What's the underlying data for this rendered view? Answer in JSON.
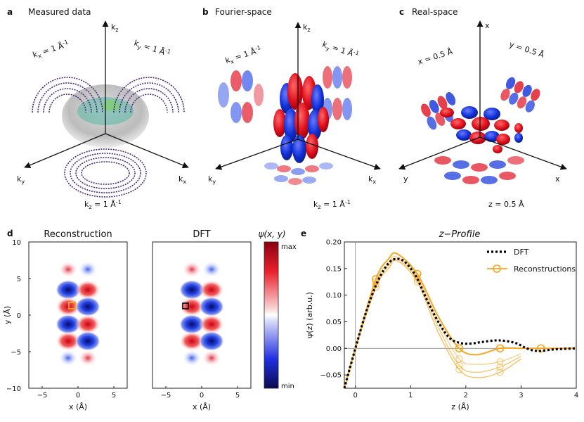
{
  "panels": {
    "a": {
      "letter": "a",
      "title": "Measured data",
      "kz": "k",
      "kz_sub": "z",
      "kx": "k",
      "kx_sub": "x",
      "ky": "k",
      "ky_sub": "y",
      "slice_x": "k",
      "slice_x_sub": "x",
      "slice_x_val": " = 1 Å",
      "slice_x_exp": "-1",
      "slice_y": "k",
      "slice_y_sub": "y",
      "slice_y_val": " = 1 Å",
      "slice_y_exp": "-1",
      "slice_z": "k",
      "slice_z_sub": "z",
      "slice_z_val": " = 1 Å",
      "slice_z_exp": "-1"
    },
    "b": {
      "letter": "b",
      "title": "Fourier-space",
      "kz": "k",
      "kz_sub": "z",
      "kx": "k",
      "kx_sub": "x",
      "ky": "k",
      "ky_sub": "y",
      "slice_x": "k",
      "slice_x_sub": "x",
      "slice_x_val": " = 1 Å",
      "slice_x_exp": "-1",
      "slice_y": "k",
      "slice_y_sub": "y",
      "slice_y_val": " = 1 Å",
      "slice_y_exp": "-1",
      "slice_z": "k",
      "slice_z_sub": "z",
      "slice_z_val": " = 1 Å",
      "slice_z_exp": "-1"
    },
    "c": {
      "letter": "c",
      "title": "Real-space",
      "ax_top": "x",
      "ax_left": "y",
      "ax_right": "x",
      "slice_x": "x = 0.5 Å",
      "slice_y": "y = 0.5 Å",
      "slice_z": "z = 0.5 Å"
    },
    "d": {
      "letter": "d",
      "title_recon": "Reconstruction",
      "title_dft": "DFT",
      "xlabel": "x (Å)",
      "ylabel": "y (Å)",
      "xticks": [
        "−5",
        "0",
        "5"
      ],
      "yticks": [
        "10",
        "5",
        "0",
        "−5",
        "−10"
      ],
      "colorbar_label": "ψ(x, y)",
      "colorbar_max": "max",
      "colorbar_min": "min"
    },
    "e": {
      "letter": "e",
      "title": "z−Profile",
      "xlabel": "z (Å)",
      "ylabel": "ψ(z) (arb.u.)",
      "legend": [
        "DFT",
        "Reconstructions"
      ]
    }
  },
  "colors": {
    "red": "#e0101c",
    "blue": "#1030d8",
    "orange": "#f5a623",
    "dft": "#000000"
  },
  "chart_data": {
    "type": "line",
    "title": "z−Profile",
    "xlabel": "z (Å)",
    "ylabel": "ψ(z) (arb.u.)",
    "xlim": [
      -0.2,
      4.0
    ],
    "ylim": [
      -0.075,
      0.2
    ],
    "xticks": [
      "0",
      "1",
      "2",
      "3",
      "4"
    ],
    "yticks": [
      "−0.05",
      "0.00",
      "0.05",
      "0.10",
      "0.15",
      "0.20"
    ],
    "legend_position": "top-right",
    "series": [
      {
        "name": "DFT",
        "style": "dotted",
        "x": [
          -0.2,
          0.0,
          0.2,
          0.4,
          0.6,
          0.75,
          0.9,
          1.1,
          1.3,
          1.5,
          1.7,
          1.9,
          2.1,
          2.3,
          2.6,
          2.9,
          3.1,
          3.3,
          3.6,
          4.0
        ],
        "y": [
          -0.075,
          0.0,
          0.07,
          0.125,
          0.16,
          0.168,
          0.162,
          0.135,
          0.09,
          0.05,
          0.02,
          0.01,
          0.009,
          0.012,
          0.015,
          0.01,
          0.0,
          -0.005,
          -0.002,
          0.0
        ]
      },
      {
        "name": "Reconstructions",
        "style": "solid-markers",
        "x": [
          -0.2,
          0.0,
          0.37,
          0.6,
          0.75,
          1.12,
          1.5,
          1.88,
          2.2,
          2.62,
          3.0,
          3.36,
          4.0
        ],
        "y": [
          -0.075,
          0.0,
          0.13,
          0.168,
          0.178,
          0.14,
          0.06,
          0.0,
          -0.012,
          0.0,
          0.0,
          0.0,
          0.0
        ]
      },
      {
        "name": "",
        "style": "faded",
        "x": [
          -0.2,
          0.0,
          0.37,
          0.6,
          0.75,
          1.12,
          1.5,
          1.88,
          2.2,
          2.62,
          3.0
        ],
        "y": [
          -0.075,
          0.0,
          0.125,
          0.16,
          0.172,
          0.135,
          0.05,
          -0.02,
          -0.03,
          -0.025,
          -0.01
        ]
      },
      {
        "name": "",
        "style": "faded",
        "x": [
          -0.2,
          0.0,
          0.37,
          0.6,
          0.75,
          1.12,
          1.5,
          1.88,
          2.2,
          2.62,
          3.0
        ],
        "y": [
          -0.075,
          0.0,
          0.12,
          0.155,
          0.168,
          0.13,
          0.04,
          -0.032,
          -0.045,
          -0.035,
          -0.015
        ]
      },
      {
        "name": "",
        "style": "faded",
        "x": [
          -0.2,
          0.0,
          0.37,
          0.6,
          0.75,
          1.12,
          1.5,
          1.88,
          2.2,
          2.62,
          3.0
        ],
        "y": [
          -0.075,
          0.0,
          0.115,
          0.15,
          0.165,
          0.125,
          0.03,
          -0.04,
          -0.055,
          -0.045,
          -0.02
        ]
      }
    ]
  }
}
